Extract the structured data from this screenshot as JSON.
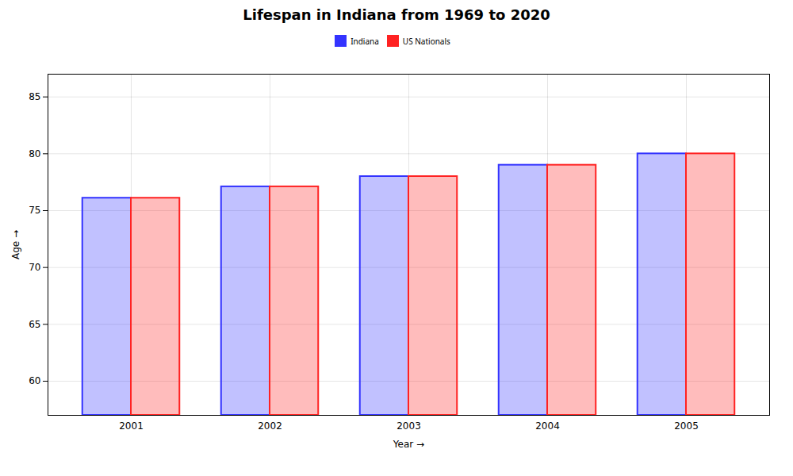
{
  "chart_data": {
    "type": "bar",
    "title": "Lifespan in Indiana from 1969 to 2020",
    "xlabel": "Year",
    "ylabel": "Age",
    "categories": [
      "2001",
      "2002",
      "2003",
      "2004",
      "2005"
    ],
    "series": [
      {
        "name": "Indiana",
        "color": "#3333ff",
        "values": [
          76.1,
          77.1,
          78.0,
          79.0,
          80.0
        ]
      },
      {
        "name": "US Nationals",
        "color": "#ff2222",
        "values": [
          76.1,
          77.1,
          78.0,
          79.0,
          80.0
        ]
      }
    ],
    "ylim": [
      57,
      87
    ],
    "yticks": [
      60,
      65,
      70,
      75,
      80,
      85
    ],
    "grid": true,
    "legend": "top"
  }
}
